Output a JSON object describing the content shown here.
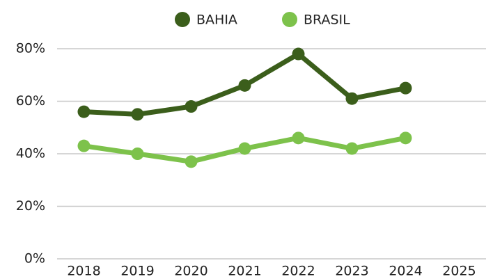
{
  "chart_data": {
    "type": "line",
    "categories": [
      "2018",
      "2019",
      "2020",
      "2021",
      "2022",
      "2023",
      "2024",
      "2025"
    ],
    "series": [
      {
        "name": "BAHIA",
        "color": "#3b5e1b",
        "values": [
          56,
          55,
          58,
          66,
          78,
          61,
          65,
          null
        ]
      },
      {
        "name": "BRASIL",
        "color": "#7dc24b",
        "values": [
          43,
          40,
          37,
          42,
          46,
          42,
          46,
          null
        ]
      }
    ],
    "ylim": [
      0,
      80
    ],
    "yticks": [
      {
        "value": 0,
        "label": "0%"
      },
      {
        "value": 20,
        "label": "20%"
      },
      {
        "value": 40,
        "label": "40%"
      },
      {
        "value": 60,
        "label": "60%"
      },
      {
        "value": 80,
        "label": "80%"
      }
    ],
    "grid": true,
    "legend": "top"
  }
}
